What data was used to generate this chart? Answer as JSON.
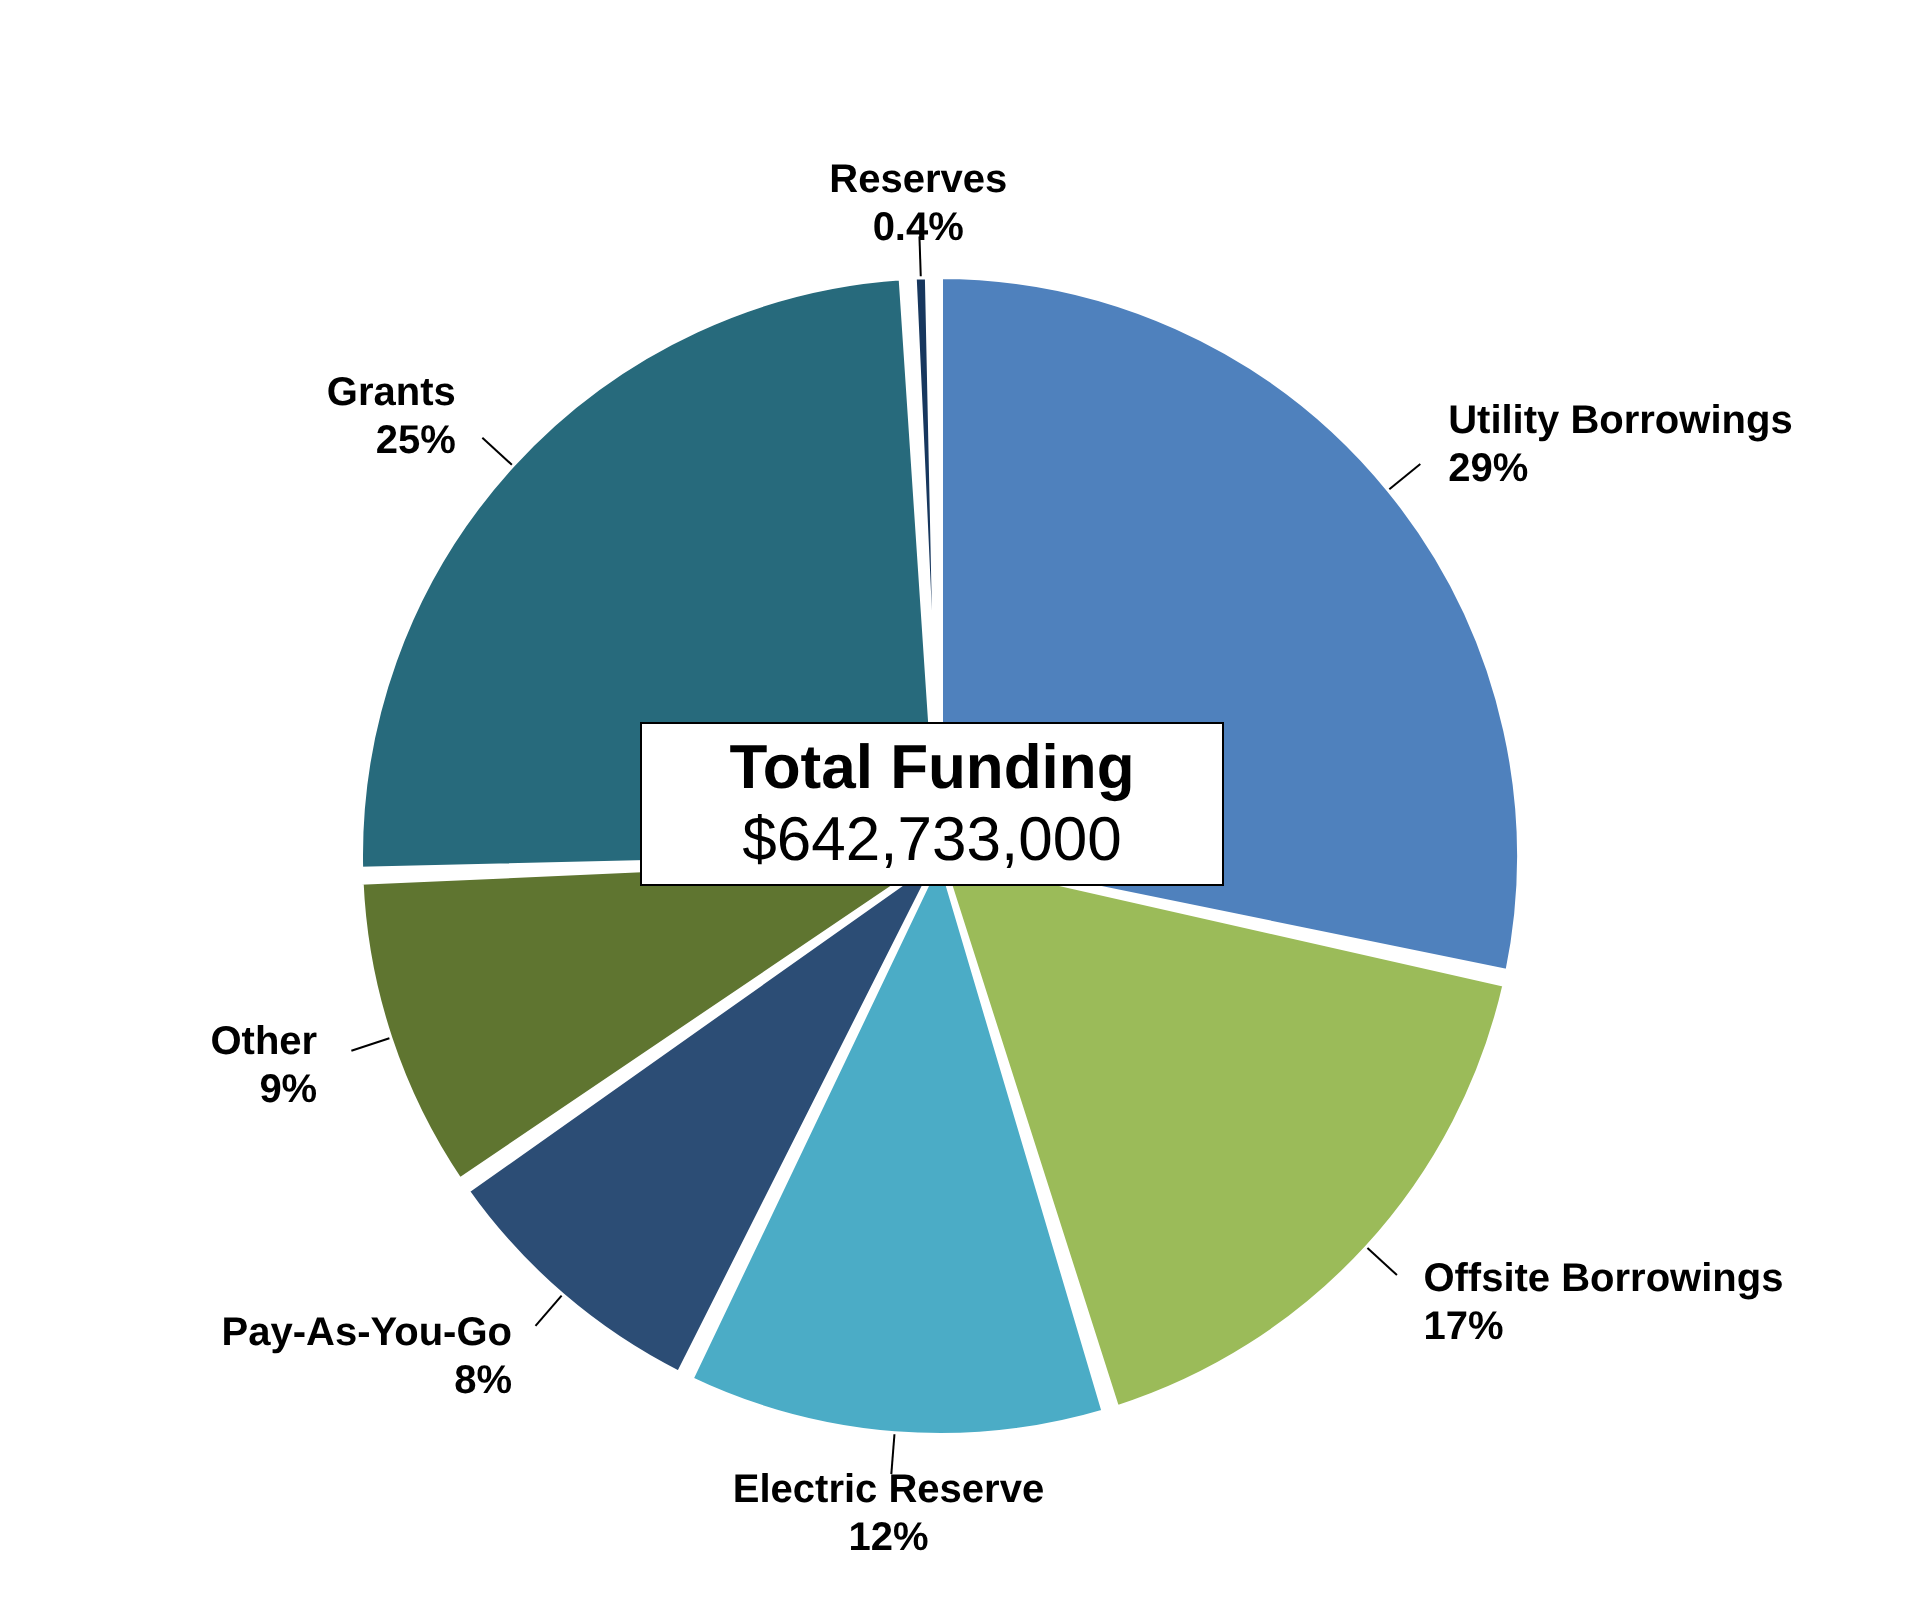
{
  "chart_data": {
    "type": "pie",
    "title": "Total Funding",
    "subtitle": "$642,733,000",
    "categories": [
      "Utility Borrowings",
      "Offsite Borrowings",
      "Electric Reserve",
      "Pay-As-You-Go",
      "Other",
      "Grants",
      "Reserves"
    ],
    "values": [
      29,
      17,
      12,
      8,
      9,
      25,
      0.4
    ],
    "colors": [
      "#4f81bd",
      "#9bbb59",
      "#4bacc6",
      "#2c4d75",
      "#5f7530",
      "#276a7c",
      "#17375e"
    ],
    "value_labels": [
      "29%",
      "17%",
      "12%",
      "8%",
      "9%",
      "25%",
      "0.4%"
    ]
  }
}
